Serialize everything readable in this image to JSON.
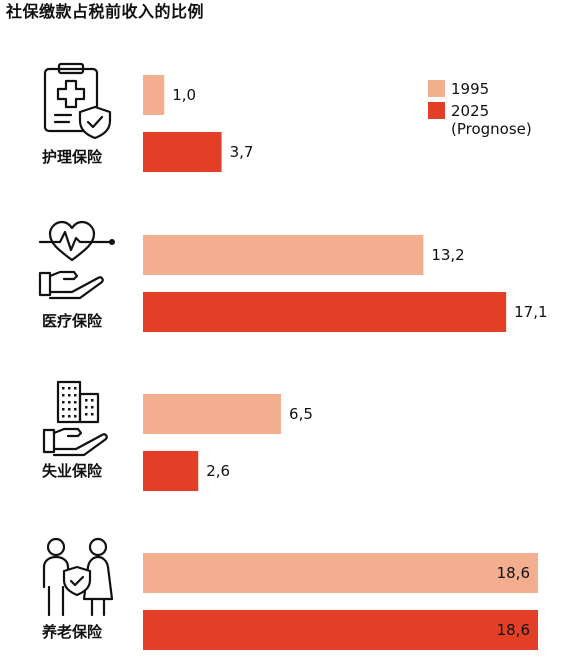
{
  "chart_data": {
    "type": "bar",
    "title": "社保缴款占税前收入的比例",
    "categories": [
      "护理保险",
      "医疗保险",
      "失业保险",
      "养老保险"
    ],
    "category_icons": [
      "clipboard-shield-icon",
      "heart-hand-icon",
      "buildings-hand-icon",
      "people-shield-icon"
    ],
    "series": [
      {
        "name": "1995",
        "color": "#F2AE8E",
        "values": [
          1.0,
          13.2,
          6.5,
          18.6
        ],
        "labels": [
          "1,0",
          "13,2",
          "6,5",
          "18,6"
        ]
      },
      {
        "name": "2025\n(Prognose)",
        "color": "#E33E26",
        "values": [
          3.7,
          17.1,
          2.6,
          18.6
        ],
        "labels": [
          "3,7",
          "17,1",
          "2,6",
          "18,6"
        ]
      }
    ],
    "xlim": [
      0,
      18.6
    ],
    "orientation": "horizontal",
    "legend_position": "top-right",
    "grid": false
  }
}
